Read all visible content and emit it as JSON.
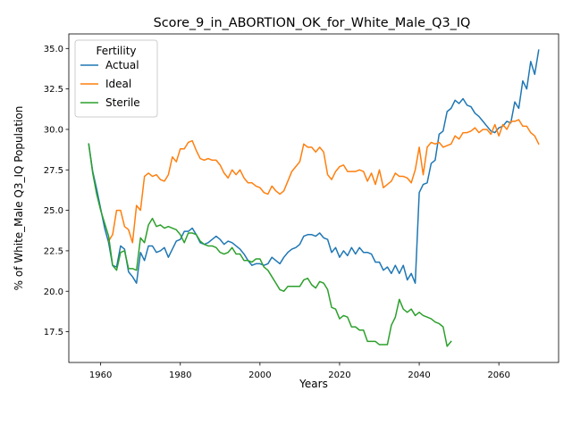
{
  "chart_data": {
    "type": "line",
    "title": "Score_9_in_ABORTION_OK_for_White_Male_Q3_IQ",
    "xlabel": "Years",
    "ylabel": "% of White_Male Q3_IQ Population",
    "xlim": [
      1952,
      2075
    ],
    "ylim": [
      15.6,
      35.9
    ],
    "x_ticks": [
      1960,
      1980,
      2000,
      2020,
      2040,
      2060
    ],
    "y_ticks": [
      17.5,
      20.0,
      22.5,
      25.0,
      27.5,
      30.0,
      32.5,
      35.0
    ],
    "y_tick_labels": [
      "17.5",
      "20.0",
      "22.5",
      "25.0",
      "27.5",
      "30.0",
      "32.5",
      "35.0"
    ],
    "grid": false,
    "legend": {
      "title": "Fertility",
      "placement": "upper left"
    },
    "series": [
      {
        "name": "Actual",
        "color": "#1f77b4",
        "points": [
          [
            1957,
            29.1
          ],
          [
            1958,
            27.4
          ],
          [
            1959,
            26.3
          ],
          [
            1960,
            25.1
          ],
          [
            1961,
            23.9
          ],
          [
            1962,
            23.0
          ],
          [
            1963,
            21.6
          ],
          [
            1964,
            21.5
          ],
          [
            1965,
            22.8
          ],
          [
            1966,
            22.6
          ],
          [
            1967,
            21.2
          ],
          [
            1968,
            20.9
          ],
          [
            1969,
            20.5
          ],
          [
            1970,
            22.4
          ],
          [
            1971,
            21.9
          ],
          [
            1972,
            22.8
          ],
          [
            1973,
            22.8
          ],
          [
            1974,
            22.4
          ],
          [
            1975,
            22.5
          ],
          [
            1976,
            22.7
          ],
          [
            1977,
            22.1
          ],
          [
            1978,
            22.6
          ],
          [
            1979,
            23.1
          ],
          [
            1980,
            23.2
          ],
          [
            1981,
            23.7
          ],
          [
            1982,
            23.7
          ],
          [
            1983,
            23.9
          ],
          [
            1984,
            23.5
          ],
          [
            1985,
            23.0
          ],
          [
            1986,
            22.9
          ],
          [
            1987,
            23.0
          ],
          [
            1988,
            23.2
          ],
          [
            1989,
            23.4
          ],
          [
            1990,
            23.2
          ],
          [
            1991,
            22.9
          ],
          [
            1992,
            23.1
          ],
          [
            1993,
            23.0
          ],
          [
            1994,
            22.8
          ],
          [
            1995,
            22.6
          ],
          [
            1996,
            22.3
          ],
          [
            1997,
            21.9
          ],
          [
            1998,
            21.6
          ],
          [
            1999,
            21.7
          ],
          [
            2000,
            21.7
          ],
          [
            2001,
            21.6
          ],
          [
            2002,
            21.7
          ],
          [
            2003,
            22.1
          ],
          [
            2004,
            21.9
          ],
          [
            2005,
            21.7
          ],
          [
            2006,
            22.1
          ],
          [
            2007,
            22.4
          ],
          [
            2008,
            22.6
          ],
          [
            2009,
            22.7
          ],
          [
            2010,
            22.9
          ],
          [
            2011,
            23.4
          ],
          [
            2012,
            23.5
          ],
          [
            2013,
            23.5
          ],
          [
            2014,
            23.4
          ],
          [
            2015,
            23.6
          ],
          [
            2016,
            23.3
          ],
          [
            2017,
            23.2
          ],
          [
            2018,
            22.4
          ],
          [
            2019,
            22.7
          ],
          [
            2020,
            22.1
          ],
          [
            2021,
            22.5
          ],
          [
            2022,
            22.2
          ],
          [
            2023,
            22.7
          ],
          [
            2024,
            22.3
          ],
          [
            2025,
            22.7
          ],
          [
            2026,
            22.4
          ],
          [
            2027,
            22.4
          ],
          [
            2028,
            22.3
          ],
          [
            2029,
            21.8
          ],
          [
            2030,
            21.8
          ],
          [
            2031,
            21.3
          ],
          [
            2032,
            21.5
          ],
          [
            2033,
            21.1
          ],
          [
            2034,
            21.6
          ],
          [
            2035,
            21.1
          ],
          [
            2036,
            21.6
          ],
          [
            2037,
            20.7
          ],
          [
            2038,
            21.1
          ],
          [
            2039,
            20.5
          ],
          [
            2040,
            26.1
          ],
          [
            2041,
            26.6
          ],
          [
            2042,
            26.7
          ],
          [
            2043,
            27.9
          ],
          [
            2044,
            28.1
          ],
          [
            2045,
            29.7
          ],
          [
            2046,
            29.9
          ],
          [
            2047,
            31.1
          ],
          [
            2048,
            31.3
          ],
          [
            2049,
            31.8
          ],
          [
            2050,
            31.6
          ],
          [
            2051,
            31.9
          ],
          [
            2052,
            31.5
          ],
          [
            2053,
            31.4
          ],
          [
            2054,
            31.0
          ],
          [
            2055,
            30.8
          ],
          [
            2056,
            30.5
          ],
          [
            2057,
            30.2
          ],
          [
            2058,
            29.9
          ],
          [
            2059,
            29.8
          ],
          [
            2060,
            30.1
          ],
          [
            2061,
            30.2
          ],
          [
            2062,
            30.5
          ],
          [
            2063,
            30.4
          ],
          [
            2064,
            31.7
          ],
          [
            2065,
            31.3
          ],
          [
            2066,
            33.0
          ],
          [
            2067,
            32.5
          ],
          [
            2068,
            34.2
          ],
          [
            2069,
            33.4
          ],
          [
            2070,
            34.9
          ]
        ]
      },
      {
        "name": "Ideal",
        "color": "#ff7f0e",
        "points": [
          [
            1962,
            23.1
          ],
          [
            1963,
            23.5
          ],
          [
            1964,
            25.0
          ],
          [
            1965,
            25.0
          ],
          [
            1966,
            24.0
          ],
          [
            1967,
            23.8
          ],
          [
            1968,
            23.0
          ],
          [
            1969,
            25.3
          ],
          [
            1970,
            25.0
          ],
          [
            1971,
            27.1
          ],
          [
            1972,
            27.3
          ],
          [
            1973,
            27.1
          ],
          [
            1974,
            27.2
          ],
          [
            1975,
            26.9
          ],
          [
            1976,
            26.8
          ],
          [
            1977,
            27.2
          ],
          [
            1978,
            28.3
          ],
          [
            1979,
            28.0
          ],
          [
            1980,
            28.8
          ],
          [
            1981,
            28.8
          ],
          [
            1982,
            29.2
          ],
          [
            1983,
            29.3
          ],
          [
            1984,
            28.7
          ],
          [
            1985,
            28.2
          ],
          [
            1986,
            28.1
          ],
          [
            1987,
            28.2
          ],
          [
            1988,
            28.1
          ],
          [
            1989,
            28.1
          ],
          [
            1990,
            27.8
          ],
          [
            1991,
            27.3
          ],
          [
            1992,
            27.0
          ],
          [
            1993,
            27.5
          ],
          [
            1994,
            27.2
          ],
          [
            1995,
            27.5
          ],
          [
            1996,
            27.0
          ],
          [
            1997,
            26.7
          ],
          [
            1998,
            26.7
          ],
          [
            1999,
            26.5
          ],
          [
            2000,
            26.4
          ],
          [
            2001,
            26.1
          ],
          [
            2002,
            26.0
          ],
          [
            2003,
            26.5
          ],
          [
            2004,
            26.2
          ],
          [
            2005,
            26.0
          ],
          [
            2006,
            26.2
          ],
          [
            2007,
            26.8
          ],
          [
            2008,
            27.4
          ],
          [
            2009,
            27.7
          ],
          [
            2010,
            28.0
          ],
          [
            2011,
            29.1
          ],
          [
            2012,
            28.9
          ],
          [
            2013,
            28.9
          ],
          [
            2014,
            28.6
          ],
          [
            2015,
            28.9
          ],
          [
            2016,
            28.6
          ],
          [
            2017,
            27.2
          ],
          [
            2018,
            26.9
          ],
          [
            2019,
            27.4
          ],
          [
            2020,
            27.7
          ],
          [
            2021,
            27.8
          ],
          [
            2022,
            27.4
          ],
          [
            2023,
            27.4
          ],
          [
            2024,
            27.4
          ],
          [
            2025,
            27.5
          ],
          [
            2026,
            27.4
          ],
          [
            2027,
            26.8
          ],
          [
            2028,
            27.3
          ],
          [
            2029,
            26.6
          ],
          [
            2030,
            27.5
          ],
          [
            2031,
            26.4
          ],
          [
            2032,
            26.6
          ],
          [
            2033,
            26.8
          ],
          [
            2034,
            27.3
          ],
          [
            2035,
            27.1
          ],
          [
            2036,
            27.1
          ],
          [
            2037,
            27.0
          ],
          [
            2038,
            26.7
          ],
          [
            2039,
            27.5
          ],
          [
            2040,
            28.9
          ],
          [
            2041,
            27.2
          ],
          [
            2042,
            28.9
          ],
          [
            2043,
            29.2
          ],
          [
            2044,
            29.1
          ],
          [
            2045,
            29.2
          ],
          [
            2046,
            28.9
          ],
          [
            2047,
            29.0
          ],
          [
            2048,
            29.1
          ],
          [
            2049,
            29.6
          ],
          [
            2050,
            29.4
          ],
          [
            2051,
            29.8
          ],
          [
            2052,
            29.8
          ],
          [
            2053,
            29.9
          ],
          [
            2054,
            30.1
          ],
          [
            2055,
            29.8
          ],
          [
            2056,
            30.0
          ],
          [
            2057,
            30.0
          ],
          [
            2058,
            29.7
          ],
          [
            2059,
            30.3
          ],
          [
            2060,
            29.6
          ],
          [
            2061,
            30.3
          ],
          [
            2062,
            30.0
          ],
          [
            2063,
            30.5
          ],
          [
            2064,
            30.5
          ],
          [
            2065,
            30.6
          ],
          [
            2066,
            30.2
          ],
          [
            2067,
            30.2
          ],
          [
            2068,
            29.8
          ],
          [
            2069,
            29.6
          ],
          [
            2070,
            29.1
          ]
        ]
      },
      {
        "name": "Sterile",
        "color": "#2ca02c",
        "points": [
          [
            1957,
            29.1
          ],
          [
            1958,
            27.3
          ],
          [
            1959,
            26.0
          ],
          [
            1960,
            25.0
          ],
          [
            1961,
            24.2
          ],
          [
            1962,
            23.4
          ],
          [
            1963,
            21.6
          ],
          [
            1964,
            21.3
          ],
          [
            1965,
            22.4
          ],
          [
            1966,
            22.5
          ],
          [
            1967,
            21.4
          ],
          [
            1968,
            21.4
          ],
          [
            1969,
            21.3
          ],
          [
            1970,
            23.3
          ],
          [
            1971,
            23.0
          ],
          [
            1972,
            24.1
          ],
          [
            1973,
            24.5
          ],
          [
            1974,
            24.0
          ],
          [
            1975,
            24.1
          ],
          [
            1976,
            23.9
          ],
          [
            1977,
            24.0
          ],
          [
            1978,
            23.9
          ],
          [
            1979,
            23.8
          ],
          [
            1980,
            23.5
          ],
          [
            1981,
            23.0
          ],
          [
            1982,
            23.6
          ],
          [
            1983,
            23.6
          ],
          [
            1984,
            23.5
          ],
          [
            1985,
            23.1
          ],
          [
            1986,
            22.9
          ],
          [
            1987,
            22.8
          ],
          [
            1988,
            22.8
          ],
          [
            1989,
            22.7
          ],
          [
            1990,
            22.4
          ],
          [
            1991,
            22.3
          ],
          [
            1992,
            22.4
          ],
          [
            1993,
            22.7
          ],
          [
            1994,
            22.3
          ],
          [
            1995,
            22.3
          ],
          [
            1996,
            21.9
          ],
          [
            1997,
            21.9
          ],
          [
            1998,
            21.8
          ],
          [
            1999,
            22.0
          ],
          [
            2000,
            22.0
          ],
          [
            2001,
            21.5
          ],
          [
            2002,
            21.3
          ],
          [
            2003,
            20.9
          ],
          [
            2004,
            20.5
          ],
          [
            2005,
            20.1
          ],
          [
            2006,
            20.0
          ],
          [
            2007,
            20.3
          ],
          [
            2008,
            20.3
          ],
          [
            2009,
            20.3
          ],
          [
            2010,
            20.3
          ],
          [
            2011,
            20.7
          ],
          [
            2012,
            20.8
          ],
          [
            2013,
            20.4
          ],
          [
            2014,
            20.2
          ],
          [
            2015,
            20.6
          ],
          [
            2016,
            20.5
          ],
          [
            2017,
            20.1
          ],
          [
            2018,
            19.0
          ],
          [
            2019,
            18.9
          ],
          [
            2020,
            18.3
          ],
          [
            2021,
            18.5
          ],
          [
            2022,
            18.4
          ],
          [
            2023,
            17.8
          ],
          [
            2024,
            17.8
          ],
          [
            2025,
            17.6
          ],
          [
            2026,
            17.6
          ],
          [
            2027,
            16.9
          ],
          [
            2028,
            16.9
          ],
          [
            2029,
            16.9
          ],
          [
            2030,
            16.7
          ],
          [
            2031,
            16.7
          ],
          [
            2032,
            16.7
          ],
          [
            2033,
            17.9
          ],
          [
            2034,
            18.4
          ],
          [
            2035,
            19.5
          ],
          [
            2036,
            18.9
          ],
          [
            2037,
            18.7
          ],
          [
            2038,
            18.9
          ],
          [
            2039,
            18.5
          ],
          [
            2040,
            18.7
          ],
          [
            2041,
            18.5
          ],
          [
            2042,
            18.4
          ],
          [
            2043,
            18.3
          ],
          [
            2044,
            18.1
          ],
          [
            2045,
            18.0
          ],
          [
            2046,
            17.8
          ],
          [
            2047,
            16.6
          ],
          [
            2048,
            16.9
          ]
        ]
      }
    ]
  }
}
